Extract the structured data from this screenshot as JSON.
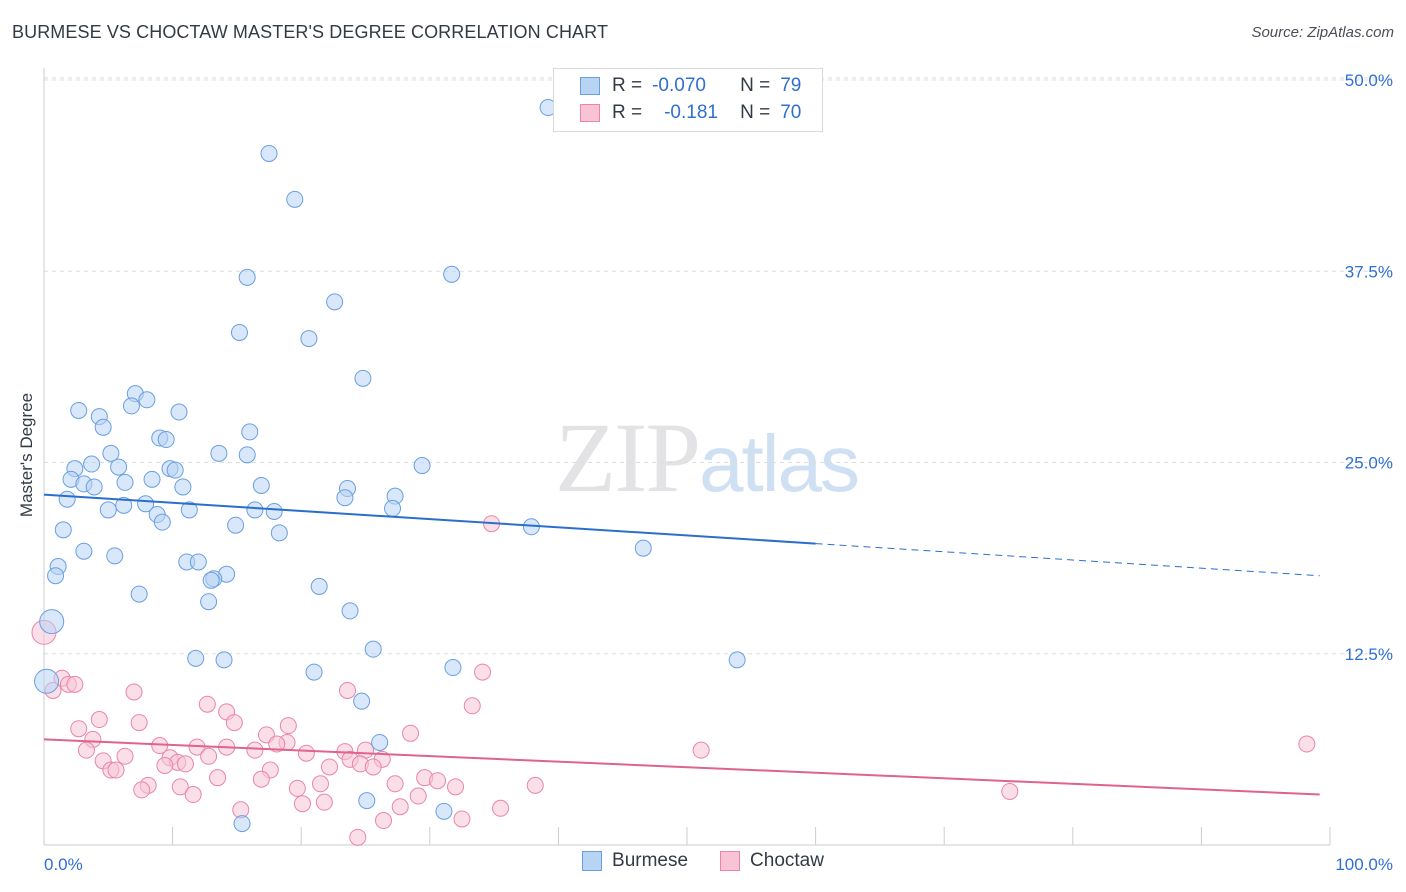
{
  "header": {
    "title": "BURMESE VS CHOCTAW MASTER'S DEGREE CORRELATION CHART",
    "source": "Source: ZipAtlas.com"
  },
  "watermark": {
    "zip": "ZIP",
    "atlas": "atlas"
  },
  "legend": {
    "burmese": {
      "r_label": "R =",
      "r_value": "-0.070",
      "n_label": "N =",
      "n_value": "79"
    },
    "choctaw": {
      "r_label": "R =",
      "r_value": "-0.181",
      "n_label": "N =",
      "n_value": "70"
    }
  },
  "bottom_legend": {
    "burmese": "Burmese",
    "choctaw": "Choctaw"
  },
  "colors": {
    "burmese_fill": "#b8d4f4",
    "burmese_stroke": "#6a9fe0",
    "burmese_line": "#2a6fcc",
    "choctaw_fill": "#f8c4d5",
    "choctaw_stroke": "#ea85a6",
    "choctaw_line": "#e0628f",
    "tick_text": "#2f6fd0",
    "grid": "#dddddd"
  },
  "chart_data": {
    "type": "scatter",
    "title": "BURMESE VS CHOCTAW MASTER'S DEGREE CORRELATION CHART",
    "xlabel": "",
    "ylabel": "Master's Degree",
    "xlim": [
      0,
      100
    ],
    "ylim": [
      0,
      51.5
    ],
    "x_tick_labels": [
      {
        "value": 0,
        "label": "0.0%"
      },
      {
        "value": 100,
        "label": "100.0%"
      }
    ],
    "y_ticks": [
      {
        "value": 12.5,
        "label": "12.5%"
      },
      {
        "value": 25,
        "label": "25.0%"
      },
      {
        "value": 37.5,
        "label": "37.5%"
      },
      {
        "value": 50,
        "label": "50.0%"
      }
    ],
    "x_minor_ticks": [
      10,
      20,
      30,
      40,
      50,
      60,
      70,
      80,
      90,
      100
    ],
    "grid": true,
    "legend_position": "top-center",
    "series": [
      {
        "name": "Burmese",
        "r": -0.07,
        "n": 79,
        "trend": {
          "x0": 0,
          "y0": 22.9,
          "x1": 60,
          "y1": 19.7,
          "x_dashed_end": 99.2,
          "y_dashed_end": 17.6
        },
        "points": [
          [
            39.2,
            48.2
          ],
          [
            17.5,
            45.2
          ],
          [
            19.5,
            42.2
          ],
          [
            15.8,
            37.1
          ],
          [
            31.7,
            37.3
          ],
          [
            22.6,
            35.5
          ],
          [
            15.2,
            33.5
          ],
          [
            20.6,
            33.1
          ],
          [
            24.8,
            30.5
          ],
          [
            7.1,
            29.5
          ],
          [
            8.0,
            29.1
          ],
          [
            6.8,
            28.7
          ],
          [
            2.7,
            28.4
          ],
          [
            4.3,
            28.0
          ],
          [
            10.5,
            28.3
          ],
          [
            4.6,
            27.3
          ],
          [
            16.0,
            27.0
          ],
          [
            9.0,
            26.6
          ],
          [
            9.5,
            26.5
          ],
          [
            5.2,
            25.6
          ],
          [
            13.6,
            25.6
          ],
          [
            15.8,
            25.5
          ],
          [
            3.7,
            24.9
          ],
          [
            2.4,
            24.6
          ],
          [
            5.8,
            24.7
          ],
          [
            9.8,
            24.6
          ],
          [
            10.2,
            24.5
          ],
          [
            29.4,
            24.8
          ],
          [
            2.1,
            23.9
          ],
          [
            8.4,
            23.9
          ],
          [
            6.3,
            23.7
          ],
          [
            3.1,
            23.6
          ],
          [
            3.9,
            23.4
          ],
          [
            10.8,
            23.4
          ],
          [
            16.9,
            23.5
          ],
          [
            23.6,
            23.3
          ],
          [
            1.8,
            22.6
          ],
          [
            23.4,
            22.7
          ],
          [
            27.3,
            22.8
          ],
          [
            7.9,
            22.3
          ],
          [
            6.2,
            22.2
          ],
          [
            5.0,
            21.9
          ],
          [
            11.3,
            21.9
          ],
          [
            17.9,
            21.8
          ],
          [
            16.4,
            21.9
          ],
          [
            27.1,
            22.0
          ],
          [
            8.8,
            21.6
          ],
          [
            9.2,
            21.1
          ],
          [
            14.9,
            20.9
          ],
          [
            37.9,
            20.8
          ],
          [
            1.5,
            20.6
          ],
          [
            18.3,
            20.4
          ],
          [
            46.6,
            19.4
          ],
          [
            3.1,
            19.2
          ],
          [
            5.5,
            18.9
          ],
          [
            11.1,
            18.5
          ],
          [
            12.0,
            18.5
          ],
          [
            1.1,
            18.2
          ],
          [
            0.9,
            17.6
          ],
          [
            14.2,
            17.7
          ],
          [
            13.2,
            17.4
          ],
          [
            13.0,
            17.3
          ],
          [
            21.4,
            16.9
          ],
          [
            7.4,
            16.4
          ],
          [
            12.8,
            15.9
          ],
          [
            0.6,
            14.6
          ],
          [
            23.8,
            15.3
          ],
          [
            25.6,
            12.8
          ],
          [
            11.8,
            12.2
          ],
          [
            14.0,
            12.1
          ],
          [
            53.9,
            12.1
          ],
          [
            31.8,
            11.6
          ],
          [
            21.0,
            11.3
          ],
          [
            0.2,
            10.7
          ],
          [
            24.7,
            9.4
          ],
          [
            26.1,
            6.7
          ],
          [
            25.1,
            2.9
          ],
          [
            31.1,
            2.2
          ],
          [
            15.4,
            1.4
          ]
        ]
      },
      {
        "name": "Choctaw",
        "r": -0.181,
        "n": 70,
        "trend": {
          "x0": 0,
          "y0": 6.9,
          "x1": 99.2,
          "y1": 3.3
        },
        "points": [
          [
            0.0,
            13.9
          ],
          [
            34.8,
            21.0
          ],
          [
            34.1,
            11.3
          ],
          [
            1.4,
            10.9
          ],
          [
            1.9,
            10.5
          ],
          [
            2.4,
            10.5
          ],
          [
            0.7,
            10.1
          ],
          [
            7.0,
            10.0
          ],
          [
            23.6,
            10.1
          ],
          [
            12.7,
            9.2
          ],
          [
            33.3,
            9.1
          ],
          [
            14.2,
            8.7
          ],
          [
            4.3,
            8.2
          ],
          [
            7.4,
            8.0
          ],
          [
            14.8,
            8.0
          ],
          [
            19.0,
            7.8
          ],
          [
            2.7,
            7.6
          ],
          [
            17.3,
            7.2
          ],
          [
            28.5,
            7.3
          ],
          [
            3.8,
            6.9
          ],
          [
            18.9,
            6.7
          ],
          [
            9.0,
            6.5
          ],
          [
            11.9,
            6.4
          ],
          [
            14.2,
            6.4
          ],
          [
            18.1,
            6.6
          ],
          [
            3.3,
            6.2
          ],
          [
            16.4,
            6.2
          ],
          [
            20.4,
            6.0
          ],
          [
            23.4,
            6.1
          ],
          [
            25.0,
            6.2
          ],
          [
            51.1,
            6.2
          ],
          [
            98.2,
            6.6
          ],
          [
            6.3,
            5.8
          ],
          [
            12.8,
            5.8
          ],
          [
            9.8,
            5.7
          ],
          [
            23.8,
            5.6
          ],
          [
            26.3,
            5.6
          ],
          [
            4.6,
            5.5
          ],
          [
            10.4,
            5.4
          ],
          [
            11.0,
            5.3
          ],
          [
            24.6,
            5.3
          ],
          [
            9.4,
            5.2
          ],
          [
            22.2,
            5.1
          ],
          [
            25.6,
            5.1
          ],
          [
            5.2,
            4.9
          ],
          [
            5.6,
            4.9
          ],
          [
            17.6,
            4.9
          ],
          [
            16.9,
            4.3
          ],
          [
            13.5,
            4.4
          ],
          [
            29.6,
            4.4
          ],
          [
            30.6,
            4.2
          ],
          [
            21.5,
            4.0
          ],
          [
            27.3,
            4.0
          ],
          [
            8.1,
            3.9
          ],
          [
            7.6,
            3.6
          ],
          [
            10.6,
            3.8
          ],
          [
            19.7,
            3.7
          ],
          [
            32.0,
            3.8
          ],
          [
            38.2,
            3.9
          ],
          [
            11.6,
            3.3
          ],
          [
            29.1,
            3.2
          ],
          [
            75.1,
            3.5
          ],
          [
            20.1,
            2.7
          ],
          [
            21.8,
            2.8
          ],
          [
            27.7,
            2.5
          ],
          [
            35.5,
            2.4
          ],
          [
            15.3,
            2.3
          ],
          [
            26.4,
            1.6
          ],
          [
            32.5,
            1.7
          ],
          [
            24.4,
            0.5
          ]
        ]
      }
    ]
  }
}
